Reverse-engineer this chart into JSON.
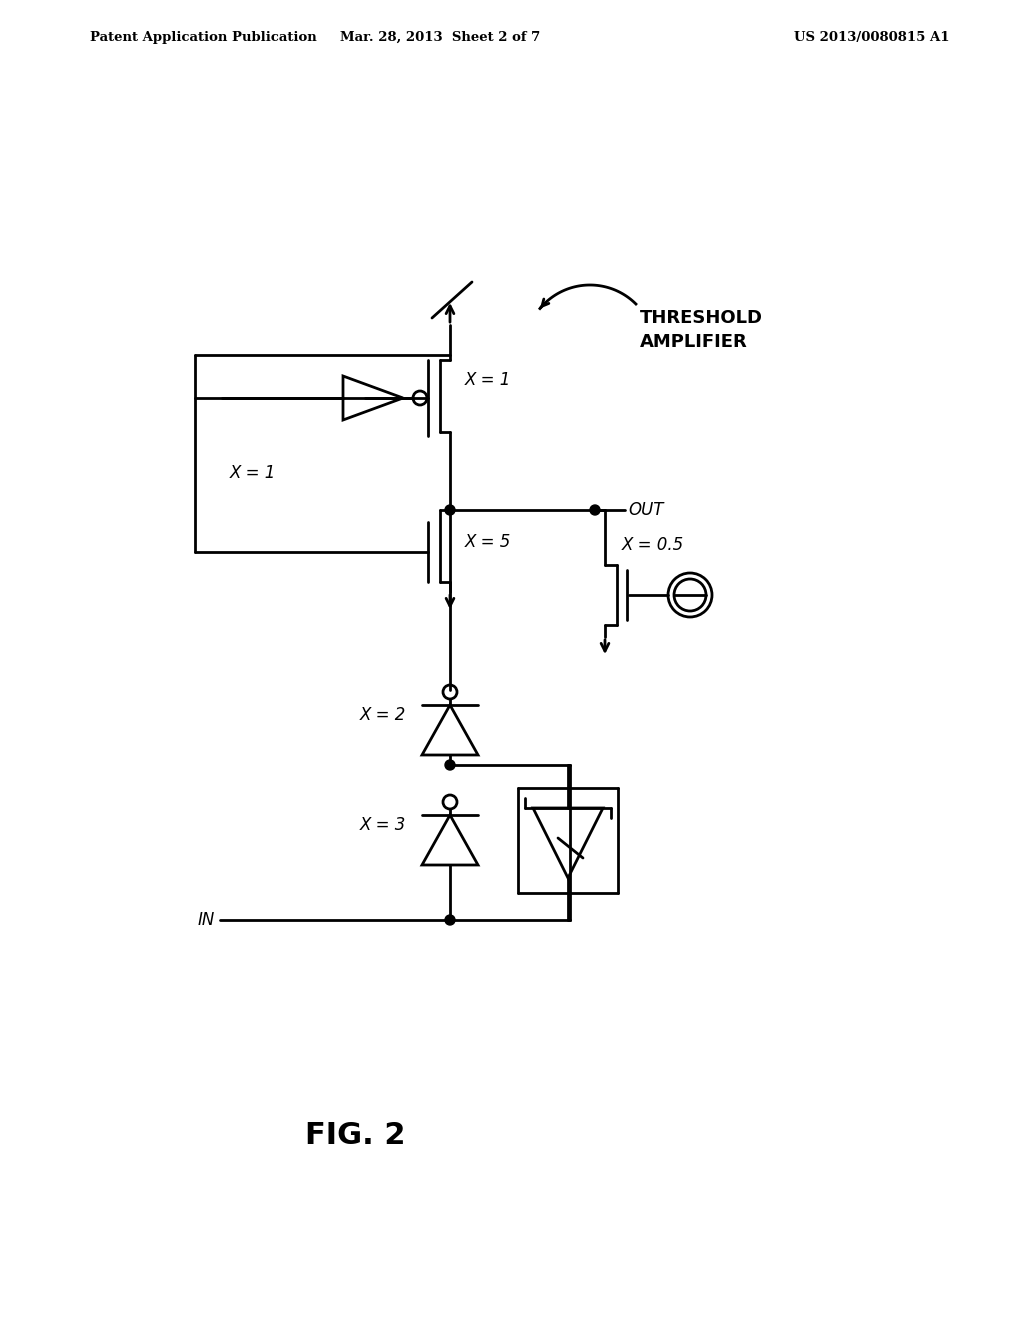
{
  "bg_color": "#ffffff",
  "line_color": "#000000",
  "header_left": "Patent Application Publication",
  "header_mid": "Mar. 28, 2013  Sheet 2 of 7",
  "header_right": "US 2013/0080815 A1",
  "fig_label": "FIG. 2",
  "label_threshold": "THRESHOLD\nAMPLIFIER",
  "label_x1_top": "X = 1",
  "label_x1_box": "X = 1",
  "label_x5": "X = 5",
  "label_x2": "X = 2",
  "label_x3": "X = 3",
  "label_x05": "X = 0.5",
  "label_out": "OUT",
  "label_in": "IN"
}
